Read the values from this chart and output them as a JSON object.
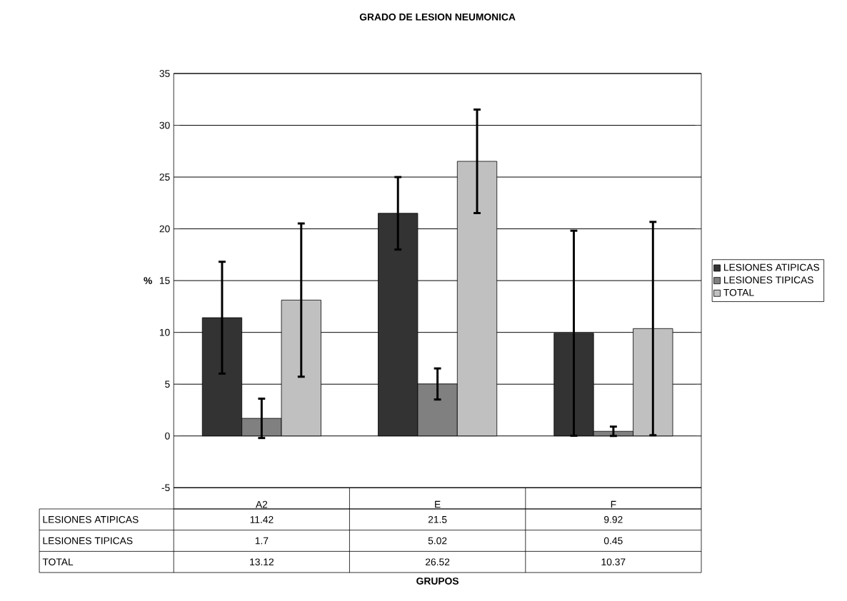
{
  "chart_data": {
    "type": "bar",
    "title": "GRADO DE LESION NEUMONICA",
    "annotations": [
      "GRUPOS"
    ],
    "ylabel": "%",
    "categories": [
      "A2",
      "E",
      "F"
    ],
    "series": [
      {
        "name": "LESIONES ATIPICAS",
        "color": "#333333",
        "values": [
          11.42,
          21.5,
          9.92
        ],
        "errors": [
          5.4,
          3.5,
          9.9
        ]
      },
      {
        "name": "LESIONES TIPICAS",
        "color": "#808080",
        "values": [
          1.7,
          5.02,
          0.45
        ],
        "errors": [
          1.9,
          1.5,
          0.45
        ]
      },
      {
        "name": "TOTAL",
        "color": "#c0c0c0",
        "values": [
          13.12,
          26.52,
          10.37
        ],
        "errors": [
          7.4,
          5,
          10.3
        ]
      }
    ],
    "ylim": [
      -5,
      35
    ],
    "yticks": [
      -5,
      0,
      5,
      10,
      15,
      20,
      25,
      30,
      35
    ],
    "grid": "y",
    "legend": "right",
    "data_labels": true
  }
}
